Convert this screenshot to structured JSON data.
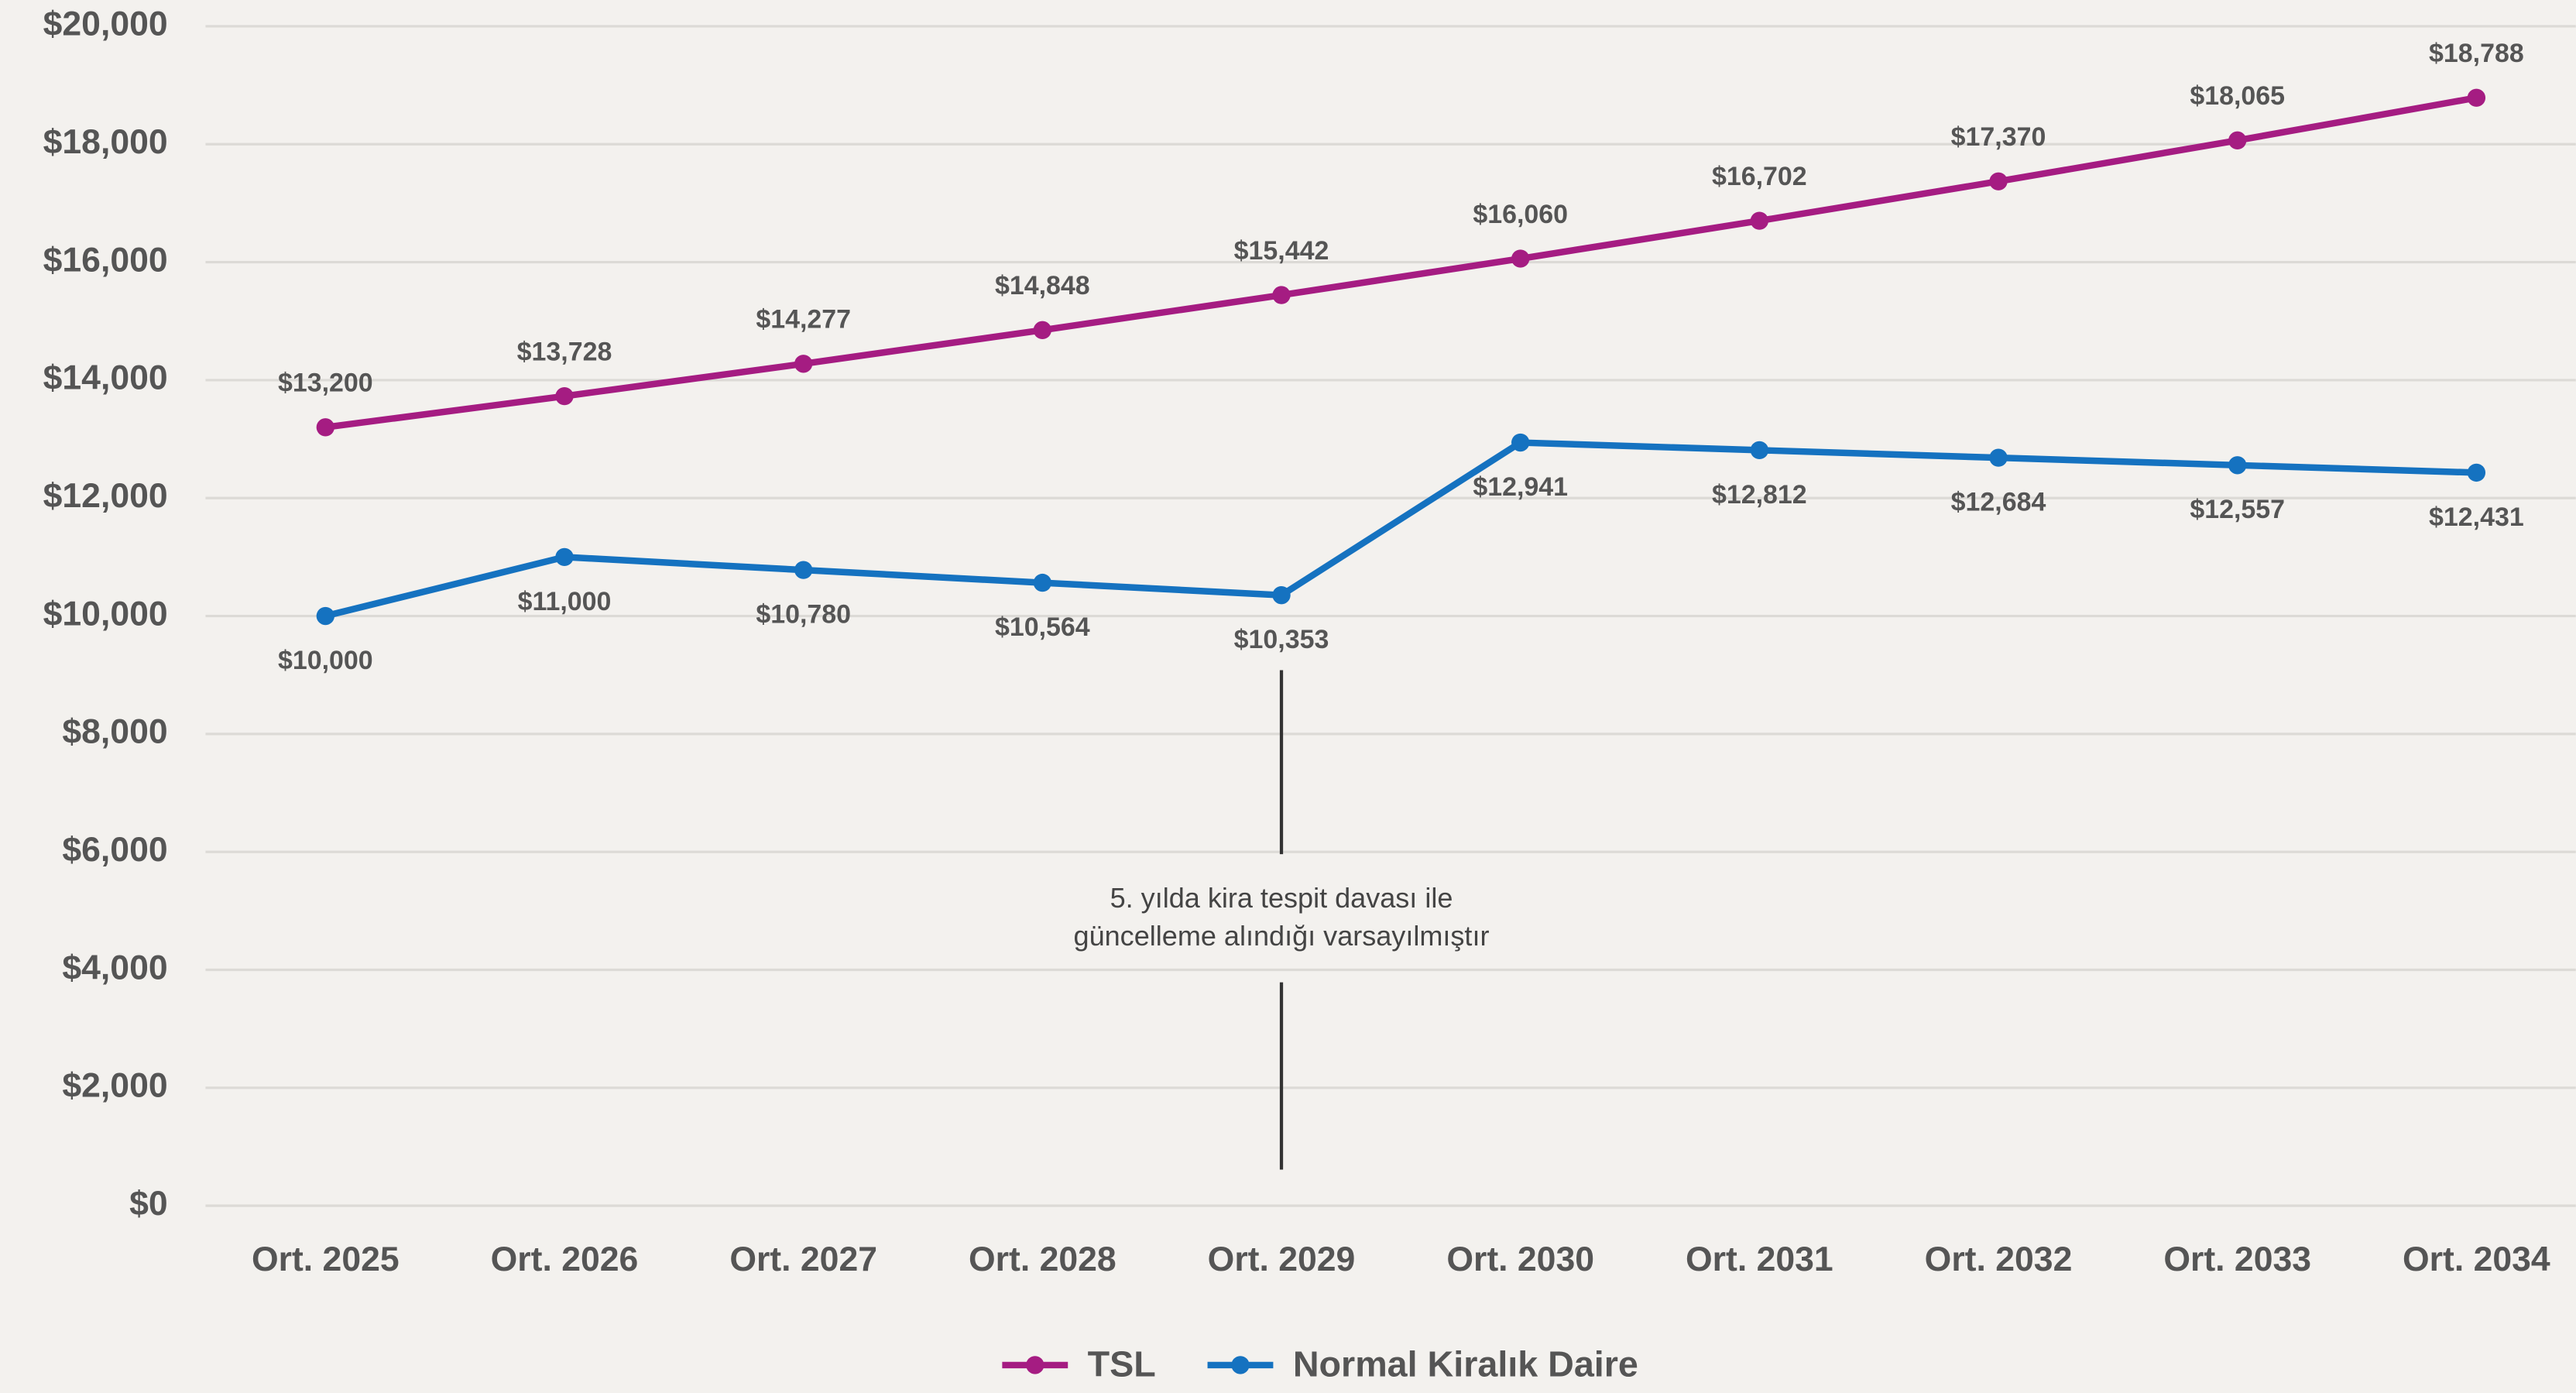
{
  "chart_data": {
    "type": "line",
    "categories": [
      "Ort. 2025",
      "Ort. 2026",
      "Ort. 2027",
      "Ort. 2028",
      "Ort. 2029",
      "Ort. 2030",
      "Ort. 2031",
      "Ort. 2032",
      "Ort. 2033",
      "Ort. 2034"
    ],
    "series": [
      {
        "name": "TSL",
        "color": "#a51c82",
        "values": [
          13200,
          13728,
          14277,
          14848,
          15442,
          16060,
          16702,
          17370,
          18065,
          18788
        ],
        "value_labels": [
          "$13,200",
          "$13,728",
          "$14,277",
          "$14,848",
          "$15,442",
          "$16,060",
          "$16,702",
          "$17,370",
          "$18,065",
          "$18,788"
        ]
      },
      {
        "name": "Normal Kiralık Daire",
        "color": "#1572c0",
        "values": [
          10000,
          11000,
          10780,
          10564,
          10353,
          12941,
          12812,
          12684,
          12557,
          12431
        ],
        "value_labels": [
          "$10,000",
          "$11,000",
          "$10,780",
          "$10,564",
          "$10,353",
          "$12,941",
          "$12,812",
          "$12,684",
          "$12,557",
          "$12,431"
        ]
      }
    ],
    "ylim": [
      0,
      20000
    ],
    "yticks": [
      {
        "value": 0,
        "label": "$0"
      },
      {
        "value": 2000,
        "label": "$2,000"
      },
      {
        "value": 4000,
        "label": "$4,000"
      },
      {
        "value": 6000,
        "label": "$6,000"
      },
      {
        "value": 8000,
        "label": "$8,000"
      },
      {
        "value": 10000,
        "label": "$10,000"
      },
      {
        "value": 12000,
        "label": "$12,000"
      },
      {
        "value": 14000,
        "label": "$14,000"
      },
      {
        "value": 16000,
        "label": "$16,000"
      },
      {
        "value": 18000,
        "label": "$18,000"
      },
      {
        "value": 20000,
        "label": "$20,000"
      }
    ],
    "grid": true,
    "legend": "bottom",
    "annotation": [
      "5. yılda kira tespit davası ile",
      "güncelleme alındığı varsayılmıştır"
    ]
  }
}
